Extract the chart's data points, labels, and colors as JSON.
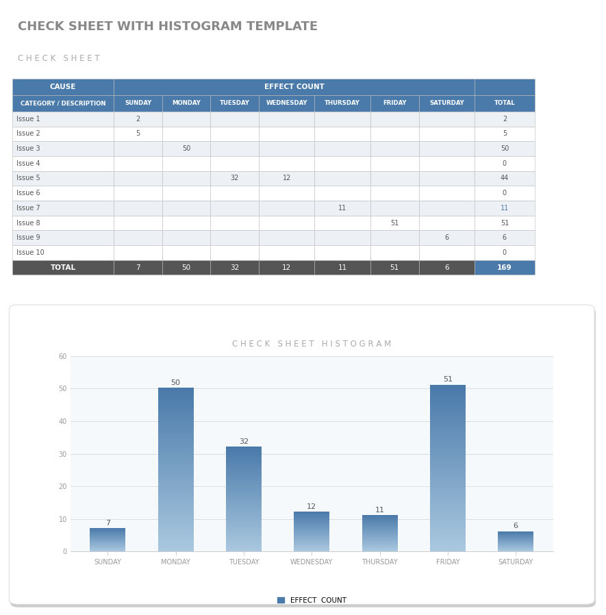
{
  "main_title": "CHECK SHEET WITH HISTOGRAM TEMPLATE",
  "section_title": "C H E C K   S H E E T",
  "table_header_row2": [
    "CATEGORY / DESCRIPTION",
    "SUNDAY",
    "MONDAY",
    "TUESDAY",
    "WEDNESDAY",
    "THURSDAY",
    "FRIDAY",
    "SATURDAY",
    "TOTAL"
  ],
  "issues": [
    "Issue 1",
    "Issue 2",
    "Issue 3",
    "Issue 4",
    "Issue 5",
    "Issue 6",
    "Issue 7",
    "Issue 8",
    "Issue 9",
    "Issue 10"
  ],
  "table_data": [
    [
      2,
      "",
      "",
      "",
      "",
      "",
      "",
      2
    ],
    [
      5,
      "",
      "",
      "",
      "",
      "",
      "",
      5
    ],
    [
      "",
      50,
      "",
      "",
      "",
      "",
      "",
      50
    ],
    [
      "",
      "",
      "",
      "",
      "",
      "",
      "",
      0
    ],
    [
      "",
      "",
      32,
      12,
      "",
      "",
      "",
      44
    ],
    [
      "",
      "",
      "",
      "",
      "",
      "",
      "",
      0
    ],
    [
      "",
      "",
      "",
      "",
      11,
      "",
      "",
      11
    ],
    [
      "",
      "",
      "",
      "",
      "",
      51,
      "",
      51
    ],
    [
      "",
      "",
      "",
      "",
      "",
      "",
      6,
      6
    ],
    [
      "",
      "",
      "",
      "",
      "",
      "",
      "",
      0
    ]
  ],
  "totals_row": [
    7,
    50,
    32,
    12,
    11,
    51,
    6,
    169
  ],
  "days": [
    "SUNDAY",
    "MONDAY",
    "TUESDAY",
    "WEDNESDAY",
    "THURSDAY",
    "FRIDAY",
    "SATURDAY"
  ],
  "day_totals": [
    7,
    50,
    32,
    12,
    11,
    51,
    6
  ],
  "chart_title": "C H E C K   S H E E T   H I S T O G R A M",
  "legend_label": "EFFECT  COUNT",
  "ylim": [
    0,
    60
  ],
  "yticks": [
    0,
    10,
    20,
    30,
    40,
    50,
    60
  ],
  "bar_color_top": "#4a7aaa",
  "bar_color_bottom": "#aac8e0",
  "header_bg_color": "#4a7aaa",
  "header_text_color": "#ffffff",
  "cause_bg_color": "#4a7aaa",
  "cause_text_color": "#ffffff",
  "total_row_bg": "#555555",
  "total_row_text": "#ffffff",
  "total_col_bg": "#4a7aaa",
  "total_col_text": "#ffffff",
  "odd_row_bg": "#edf1f5",
  "even_row_bg": "#ffffff",
  "grid_color": "#cccccc",
  "chart_bg": "#f5f9fc",
  "title_color": "#aaaaaa",
  "section_title_color": "#aaaaaa",
  "main_title_color": "#888888",
  "annotation_color": "#555555",
  "axis_label_color": "#999999",
  "issue7_total_color": "#4a7aaa"
}
